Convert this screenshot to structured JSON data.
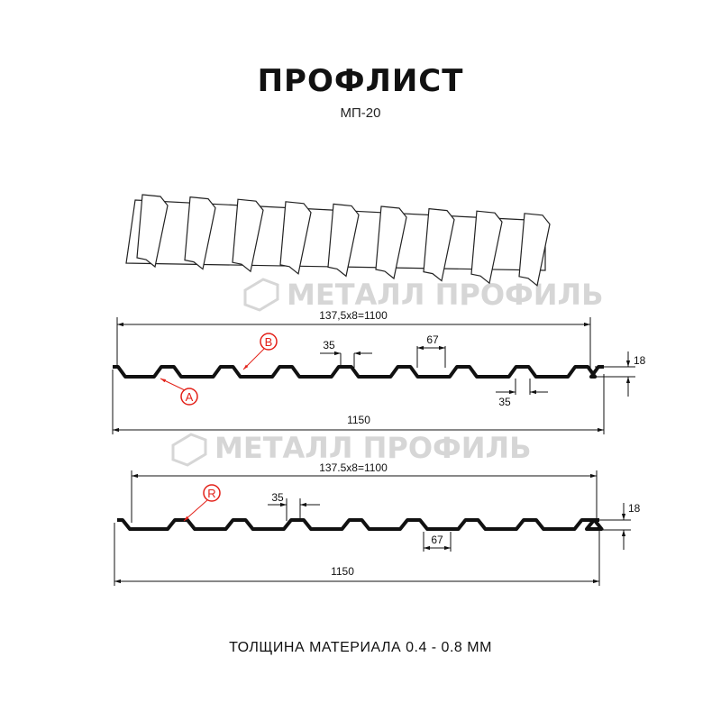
{
  "title": "ПРОФЛИСТ",
  "subtitle": "МП-20",
  "watermark": "МЕТАЛЛ ПРОФИЛЬ",
  "profile_a": {
    "pitch_label": "137,5x8=1100",
    "total_width": "1150",
    "height": "18",
    "top_width": "35",
    "rib_top": "67",
    "bottom_width": "35",
    "callouts": [
      "A",
      "B"
    ]
  },
  "profile_b": {
    "pitch_label": "137.5x8=1100",
    "total_width": "1150",
    "height": "18",
    "top_width": "35",
    "bottom_width": "67",
    "callouts": [
      "R"
    ]
  },
  "footer": "ТОЛЩИНА МАТЕРИАЛА 0.4 - 0.8 ММ",
  "colors": {
    "profile": "#111111",
    "callout": "#e32119",
    "watermark": "#d6d6d6"
  }
}
